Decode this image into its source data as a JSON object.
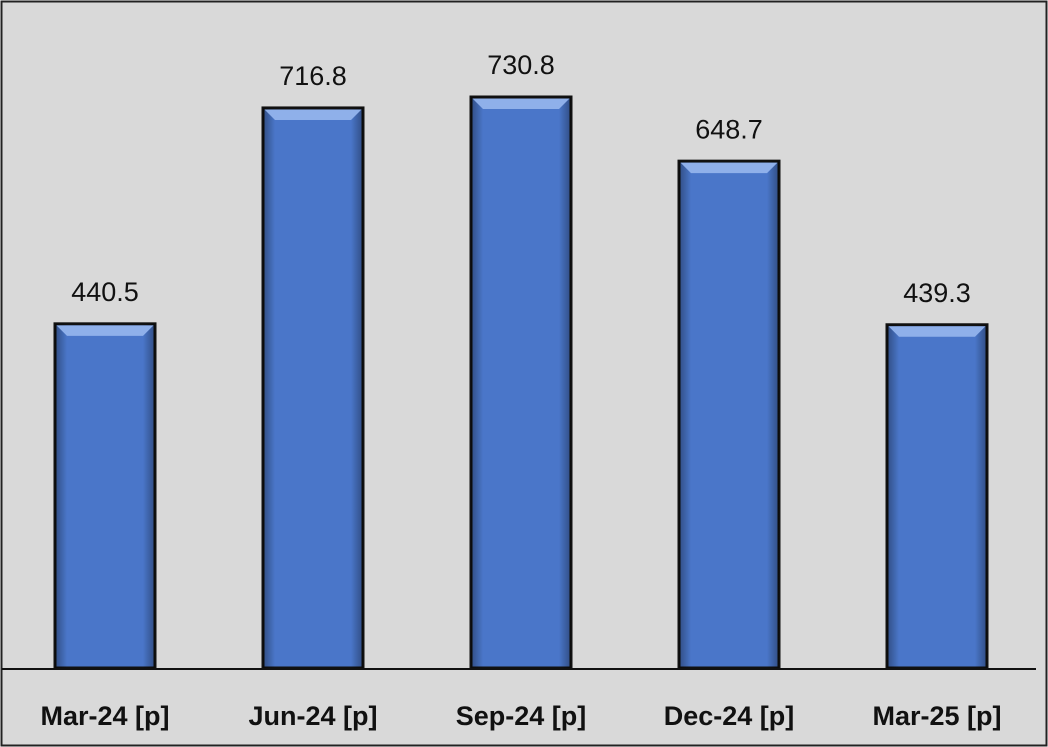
{
  "chart_data": {
    "type": "bar",
    "categories": [
      "Mar-24 [p]",
      "Jun-24 [p]",
      "Sep-24 [p]",
      "Dec-24 [p]",
      "Mar-25 [p]"
    ],
    "values": [
      440.5,
      716.8,
      730.8,
      648.7,
      439.3
    ],
    "color": "#4a76c9"
  }
}
